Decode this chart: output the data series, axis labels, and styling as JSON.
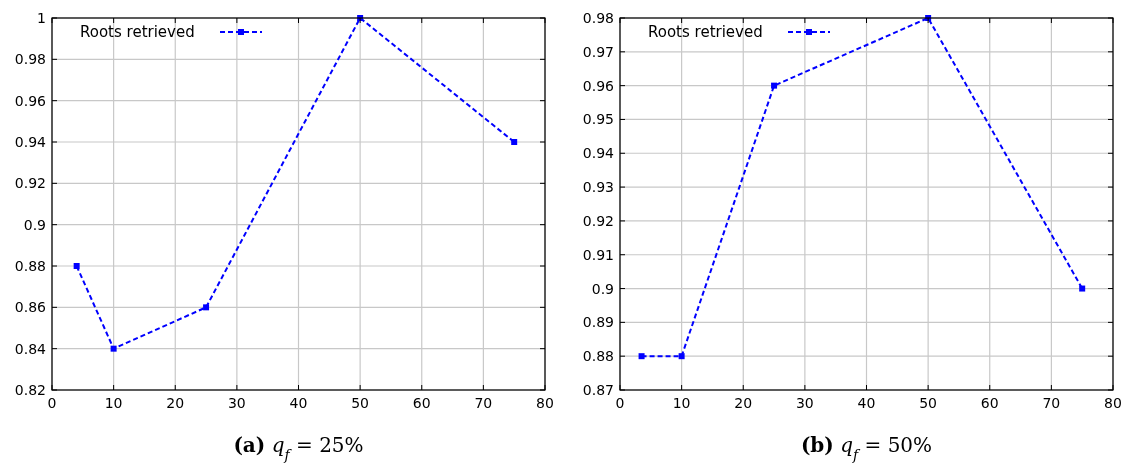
{
  "chart_data": [
    {
      "type": "line",
      "title": "(a) q$_{f}$ = 25%",
      "x": [
        4,
        10,
        25,
        50,
        75
      ],
      "series": [
        {
          "name": "Roots retrieved",
          "color": "#0000ff",
          "values": [
            0.88,
            0.84,
            0.86,
            1,
            0.94
          ]
        }
      ],
      "xlim": [
        0,
        80
      ],
      "xticks": [
        0,
        10,
        20,
        30,
        40,
        50,
        60,
        70,
        80
      ],
      "ylim": [
        0.82,
        1
      ],
      "yticks": [
        0.82,
        0.84,
        0.86,
        0.88,
        0.9,
        0.92,
        0.94,
        0.96,
        0.98,
        1
      ],
      "grid": true,
      "legend": "top left",
      "marker": "square",
      "line_style": "dashed"
    },
    {
      "type": "line",
      "title": "(b) q$_{f}$ = 50%",
      "x": [
        3.5,
        10,
        25,
        50,
        75
      ],
      "series": [
        {
          "name": "Roots retrieved",
          "color": "#0000ff",
          "values": [
            0.88,
            0.88,
            0.96,
            0.98,
            0.9
          ]
        }
      ],
      "xlim": [
        0,
        80
      ],
      "xticks": [
        0,
        10,
        20,
        30,
        40,
        50,
        60,
        70,
        80
      ],
      "ylim": [
        0.87,
        0.98
      ],
      "yticks": [
        0.87,
        0.88,
        0.89,
        0.9,
        0.91,
        0.92,
        0.93,
        0.94,
        0.95,
        0.96,
        0.97,
        0.98
      ],
      "grid": true,
      "legend": "top left",
      "marker": "square",
      "line_style": "dashed"
    }
  ]
}
